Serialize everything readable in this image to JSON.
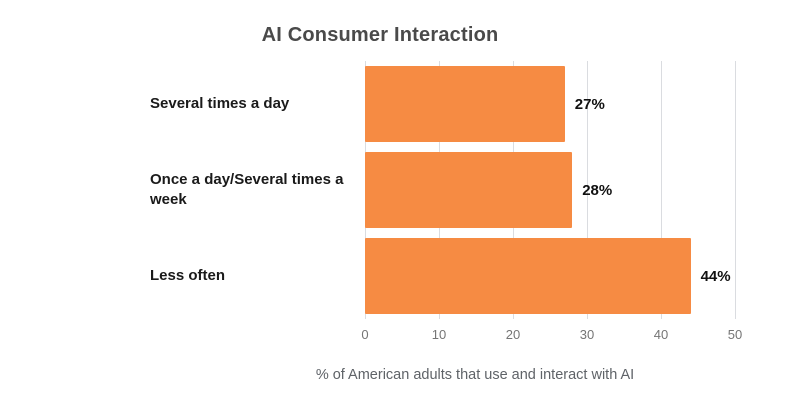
{
  "chart_data": {
    "type": "bar",
    "orientation": "horizontal",
    "title": "AI Consumer Interaction",
    "categories": [
      "Several times a day",
      "Once a day/Several times a week",
      "Less often"
    ],
    "values": [
      27,
      28,
      44
    ],
    "data_labels": [
      "27%",
      "28%",
      "44%"
    ],
    "xlabel": "% of American adults that use and interact with AI",
    "ylabel": "",
    "xlim": [
      0,
      50
    ],
    "xticks": [
      "0",
      "10",
      "20",
      "30",
      "40",
      "50"
    ],
    "grid": "vertical-light",
    "legend": "none",
    "colors": {
      "bar": "#f68b43",
      "gridline": "#dadce0",
      "title": "#4a4a4a",
      "tick_text": "#757575",
      "axis_text": "#5f6368",
      "background": "#ffffff"
    }
  }
}
